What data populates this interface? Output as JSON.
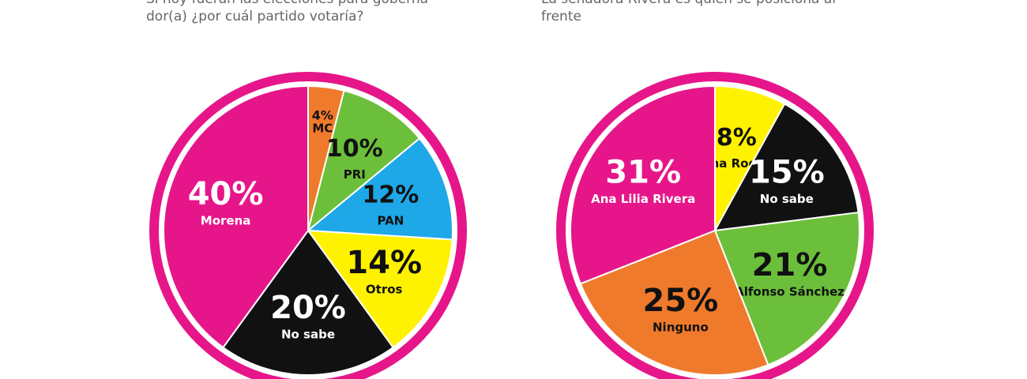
{
  "chart_data": [
    {
      "type": "pie",
      "subtitle": [
        "Si hoy fueran las elecciones para goberna-",
        "dor(a) ¿por cuál partido votaría?"
      ],
      "categories": [
        "MC",
        "PRI",
        "PAN",
        "Otros",
        "No sabe",
        "Morena"
      ],
      "values": [
        4,
        10,
        12,
        14,
        20,
        40
      ],
      "value_labels": [
        "4%",
        "10%",
        "12%",
        "14%",
        "20%",
        "40%"
      ],
      "colors": [
        "#f07a2c",
        "#6cbf3a",
        "#1ea8e8",
        "#fff200",
        "#111111",
        "#e6168a"
      ]
    },
    {
      "type": "pie",
      "subtitle": [
        "La senadora Rivera es quien se posiciona al",
        "frente"
      ],
      "categories": [
        "Josefina Rodríguez",
        "No sabe",
        "Alfonso Sánchez",
        "Ninguno",
        "Ana Lilia Rivera"
      ],
      "values": [
        8,
        15,
        21,
        25,
        31
      ],
      "value_labels": [
        "8%",
        "15%",
        "21%",
        "25%",
        "31%"
      ],
      "colors": [
        "#fff200",
        "#111111",
        "#6cbf3a",
        "#f07a2c",
        "#e6168a"
      ]
    }
  ]
}
